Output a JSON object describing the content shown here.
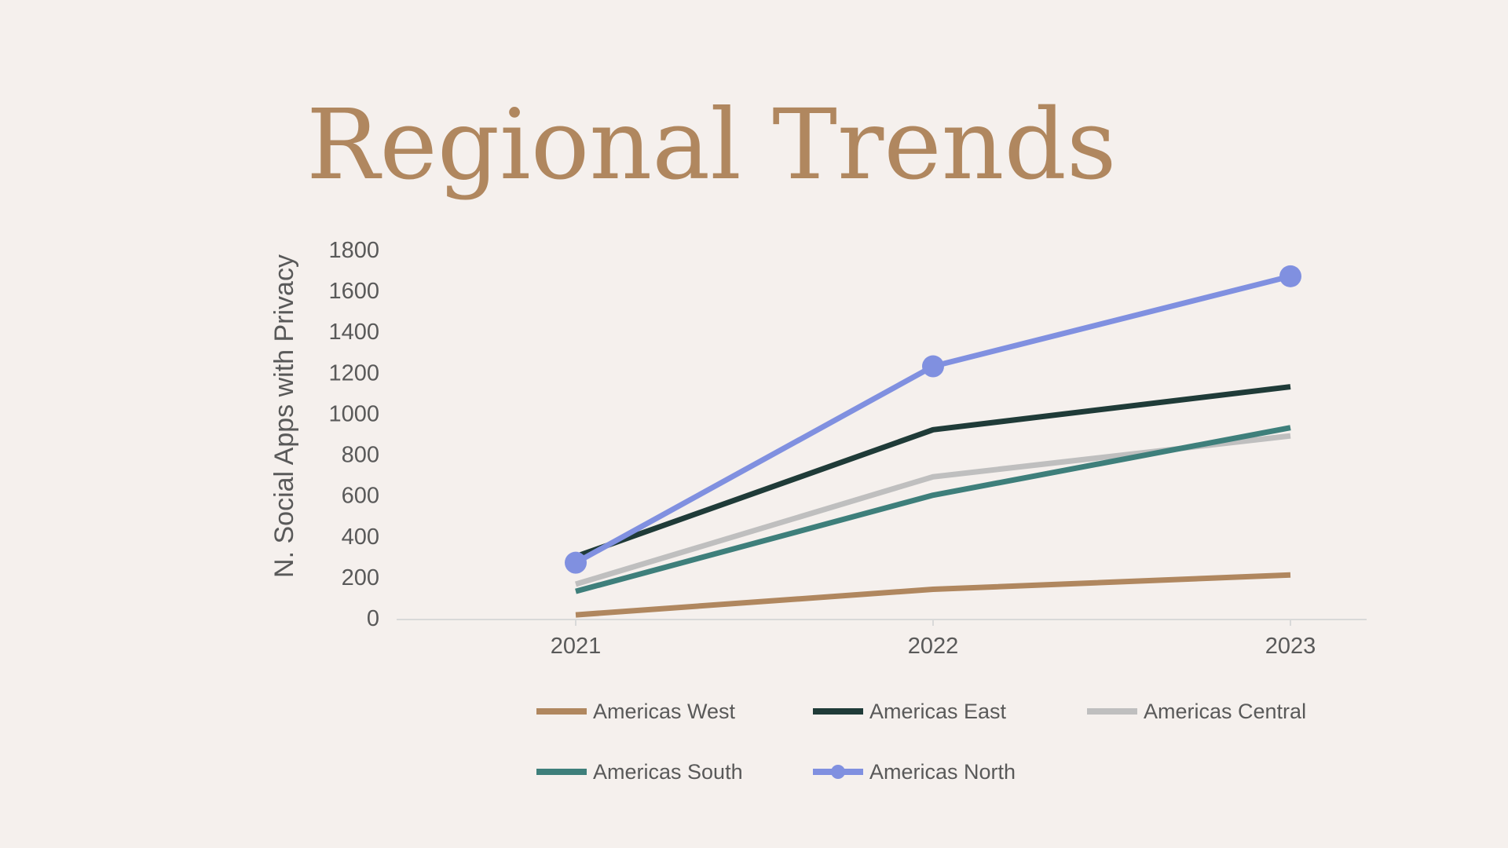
{
  "slide": {
    "title": "Regional Trends"
  },
  "chart_data": {
    "type": "line",
    "title": "",
    "xlabel": "",
    "ylabel": "N. Social Apps with Privacy",
    "x": [
      "2021",
      "2022",
      "2023"
    ],
    "ylim": [
      0,
      1800
    ],
    "yticks": [
      0,
      200,
      400,
      600,
      800,
      1000,
      1200,
      1400,
      1600,
      1800
    ],
    "grid": false,
    "legend_position": "bottom",
    "series": [
      {
        "name": "Americas West",
        "values": [
          15,
          140,
          210
        ],
        "color": "#b0875f",
        "marker": false
      },
      {
        "name": "Americas East",
        "values": [
          300,
          920,
          1130
        ],
        "color": "#1f3b38",
        "marker": false
      },
      {
        "name": "Americas Central",
        "values": [
          165,
          690,
          890
        ],
        "color": "#bfbfbf",
        "marker": false
      },
      {
        "name": "Americas South",
        "values": [
          130,
          600,
          930
        ],
        "color": "#3e7f7b",
        "marker": false
      },
      {
        "name": "Americas North",
        "values": [
          270,
          1230,
          1670
        ],
        "color": "#8090e0",
        "marker": true
      }
    ]
  }
}
